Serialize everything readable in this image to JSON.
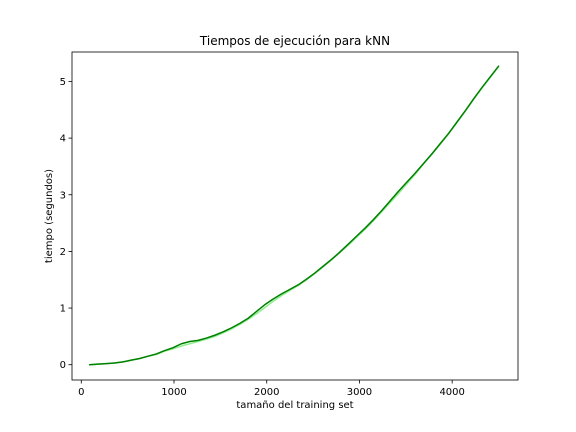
{
  "chart_data": {
    "type": "line",
    "title": "Tiempos de ejecución para kNN",
    "xlabel": "tamaño del training set",
    "ylabel": "tiempo (segundos)",
    "xlim": [
      -100,
      4710
    ],
    "ylim": [
      -0.27,
      5.52
    ],
    "xticks": [
      0,
      1000,
      2000,
      3000,
      4000
    ],
    "yticks": [
      0,
      1,
      2,
      3,
      4,
      5
    ],
    "grid": false,
    "legend": "none",
    "series": [
      {
        "color": "#008000",
        "x": [
          90,
          180,
          270,
          360,
          450,
          540,
          630,
          720,
          810,
          900,
          990,
          1080,
          1170,
          1260,
          1350,
          1440,
          1530,
          1620,
          1710,
          1800,
          1890,
          1980,
          2070,
          2160,
          2250,
          2340,
          2430,
          2520,
          2610,
          2700,
          2790,
          2880,
          2970,
          3060,
          3150,
          3240,
          3330,
          3420,
          3510,
          3600,
          3690,
          3780,
          3870,
          3960,
          4050,
          4140,
          4230,
          4320,
          4410,
          4500
        ],
        "values": [
          0.0,
          0.01,
          0.02,
          0.03,
          0.05,
          0.08,
          0.11,
          0.15,
          0.19,
          0.25,
          0.3,
          0.37,
          0.41,
          0.43,
          0.47,
          0.52,
          0.58,
          0.65,
          0.73,
          0.82,
          0.94,
          1.06,
          1.16,
          1.25,
          1.33,
          1.41,
          1.51,
          1.62,
          1.74,
          1.86,
          1.99,
          2.13,
          2.27,
          2.41,
          2.56,
          2.72,
          2.89,
          3.06,
          3.22,
          3.38,
          3.55,
          3.72,
          3.9,
          4.08,
          4.28,
          4.48,
          4.69,
          4.89,
          5.08,
          5.27
        ]
      },
      {
        "color": "#90ee90",
        "x": [
          90,
          180,
          270,
          360,
          450,
          540,
          630,
          720,
          810,
          900,
          990,
          1080,
          1170,
          1260,
          1350,
          1440,
          1530,
          1620,
          1710,
          1800,
          1890,
          1980,
          2070,
          2160,
          2250,
          2340,
          2430,
          2520,
          2610,
          2700,
          2790,
          2880,
          2970,
          3060,
          3150,
          3240,
          3330,
          3420,
          3510,
          3600,
          3690,
          3780,
          3870,
          3960,
          4050,
          4140,
          4230,
          4320,
          4410,
          4500
        ],
        "values": [
          0.0,
          0.01,
          0.02,
          0.03,
          0.05,
          0.08,
          0.11,
          0.15,
          0.18,
          0.24,
          0.28,
          0.33,
          0.37,
          0.41,
          0.45,
          0.5,
          0.56,
          0.63,
          0.71,
          0.8,
          0.9,
          1.01,
          1.12,
          1.22,
          1.31,
          1.4,
          1.5,
          1.61,
          1.73,
          1.85,
          1.98,
          2.11,
          2.25,
          2.39,
          2.54,
          2.7,
          2.86,
          3.02,
          3.19,
          3.36,
          3.54,
          3.71,
          3.89,
          4.07,
          4.27,
          4.47,
          4.68,
          4.88,
          5.07,
          5.26
        ]
      }
    ]
  }
}
